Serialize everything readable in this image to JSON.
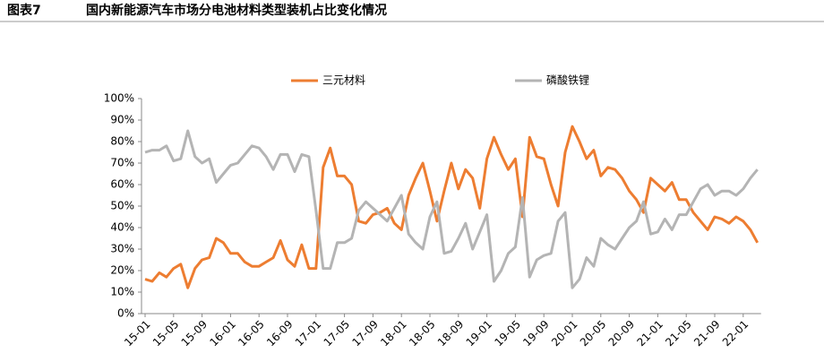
{
  "chart_data": {
    "type": "line",
    "figure_label": "图表7",
    "title": "国内新能源汽车市场分电池材料类型装机占比变化情况",
    "categories": [
      "15-01",
      null,
      null,
      null,
      "15-05",
      null,
      null,
      null,
      "15-09",
      null,
      null,
      null,
      "16-01",
      null,
      null,
      null,
      "16-05",
      null,
      null,
      null,
      "16-09",
      null,
      null,
      null,
      "17-01",
      null,
      null,
      null,
      "17-05",
      null,
      null,
      null,
      "17-09",
      null,
      null,
      null,
      "18-01",
      null,
      null,
      null,
      "18-05",
      null,
      null,
      null,
      "18-09",
      null,
      null,
      null,
      "19-01",
      null,
      null,
      null,
      "19-05",
      null,
      null,
      null,
      "19-09",
      null,
      null,
      null,
      "20-01",
      null,
      null,
      null,
      "20-05",
      null,
      null,
      null,
      "20-09",
      null,
      null,
      null,
      "21-01",
      null,
      null,
      null,
      "21-05",
      null,
      null,
      null,
      "21-09",
      null,
      null,
      null,
      "22-01",
      null,
      null
    ],
    "series": [
      {
        "name": "三元材料",
        "color": "#ed7d31",
        "values": [
          16,
          15,
          19,
          17,
          21,
          23,
          12,
          21,
          25,
          26,
          35,
          33,
          28,
          28,
          24,
          22,
          22,
          24,
          26,
          34,
          25,
          22,
          32,
          21,
          21,
          68,
          77,
          64,
          64,
          60,
          43,
          42,
          46,
          47,
          49,
          42,
          39,
          55,
          63,
          70,
          57,
          43,
          57,
          70,
          58,
          67,
          63,
          49,
          72,
          82,
          74,
          67,
          72,
          45,
          82,
          73,
          72,
          60,
          50,
          75,
          87,
          80,
          72,
          76,
          64,
          68,
          67,
          63,
          57,
          53,
          47,
          63,
          60,
          57,
          61,
          53,
          53,
          47,
          43,
          39,
          45,
          44,
          42,
          45,
          43,
          39,
          33
        ]
      },
      {
        "name": "磷酸铁锂",
        "color": "#b4b4b4",
        "values": [
          75,
          76,
          76,
          78,
          71,
          72,
          85,
          73,
          70,
          72,
          61,
          65,
          69,
          70,
          74,
          78,
          77,
          73,
          67,
          74,
          74,
          66,
          74,
          73,
          48,
          21,
          21,
          33,
          33,
          35,
          48,
          52,
          49,
          46,
          43,
          49,
          55,
          37,
          33,
          30,
          45,
          52,
          28,
          29,
          35,
          42,
          30,
          38,
          46,
          15,
          20,
          28,
          31,
          54,
          17,
          25,
          27,
          28,
          43,
          47,
          12,
          16,
          26,
          22,
          35,
          32,
          30,
          35,
          40,
          43,
          52,
          37,
          38,
          44,
          39,
          46,
          46,
          52,
          58,
          60,
          55,
          57,
          57,
          55,
          58,
          63,
          67
        ]
      }
    ],
    "ylim": [
      0,
      100
    ],
    "yticks": [
      {
        "value": 0,
        "label": "0%"
      },
      {
        "value": 10,
        "label": "10%"
      },
      {
        "value": 20,
        "label": "20%"
      },
      {
        "value": 30,
        "label": "30%"
      },
      {
        "value": 40,
        "label": "40%"
      },
      {
        "value": 50,
        "label": "50%"
      },
      {
        "value": 60,
        "label": "60%"
      },
      {
        "value": 70,
        "label": "70%"
      },
      {
        "value": 80,
        "label": "80%"
      },
      {
        "value": 90,
        "label": "90%"
      },
      {
        "value": 100,
        "label": "100%"
      }
    ],
    "grid": false,
    "legend": "top"
  }
}
